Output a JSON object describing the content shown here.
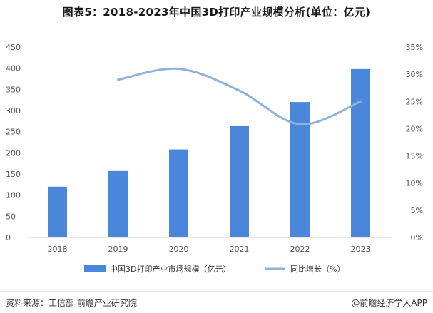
{
  "title": "图表5：2018-2023年中国3D打印产业规模分析(单位：亿元)",
  "footer": {
    "source": "资料来源：工信部 前瞻产业研究院",
    "brand": "@前瞻经济学人APP"
  },
  "colors": {
    "bar": "#4a86d9",
    "line": "#8fb1da"
  },
  "chart_data": {
    "type": "bar",
    "categories": [
      "2018",
      "2019",
      "2020",
      "2021",
      "2022",
      "2023"
    ],
    "series": [
      {
        "name": "中国3D打印产业市场规模（亿元）",
        "type": "bar",
        "axis": "left",
        "values": [
          120,
          157,
          208,
          263,
          320,
          398
        ]
      },
      {
        "name": "同比增长（%）",
        "type": "line",
        "axis": "right",
        "values": [
          null,
          29.0,
          31.0,
          27.0,
          20.8,
          25.0
        ]
      }
    ],
    "y_left": {
      "ylim": [
        0,
        450
      ],
      "ticks": [
        "0",
        "50",
        "100",
        "150",
        "200",
        "250",
        "300",
        "350",
        "400",
        "450"
      ]
    },
    "y_right": {
      "ylim": [
        0,
        35
      ],
      "ticks": [
        "0%",
        "5%",
        "10%",
        "15%",
        "20%",
        "25%",
        "30%",
        "35%"
      ]
    },
    "grid": false,
    "legend_position": "bottom"
  }
}
